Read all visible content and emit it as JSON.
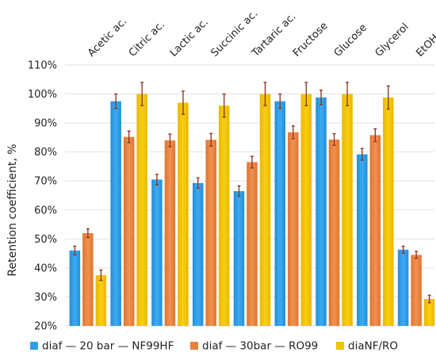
{
  "chart_data": {
    "type": "bar",
    "categories": [
      "Acetic ac.",
      "Citric ac.",
      "Lactic ac.",
      "Succinic ac.",
      "Tartaric ac.",
      "Fructose",
      "Glucose",
      "Glycerol",
      "EtOH"
    ],
    "series": [
      {
        "name": "diaf — 20 bar — NF99HF",
        "color": "#2e9fe6",
        "values": [
          46,
          97.5,
          70.5,
          69.3,
          66.5,
          97.5,
          98.8,
          79.2,
          46.3
        ],
        "errors": [
          1.5,
          2.5,
          1.8,
          1.8,
          1.8,
          2.5,
          2.5,
          2.0,
          1.2
        ]
      },
      {
        "name": "diaf — 30bar — RO99",
        "color": "#e8823a",
        "values": [
          52,
          85.2,
          84,
          84.2,
          76.5,
          86.8,
          84.3,
          85.8,
          44.5
        ],
        "errors": [
          1.5,
          2.0,
          2.2,
          2.2,
          2.0,
          2.2,
          2.0,
          2.2,
          1.2
        ]
      },
      {
        "name": "diaNF/RO",
        "color": "#f2c200",
        "values": [
          37.5,
          100,
          97,
          96,
          100,
          100,
          100,
          98.8,
          29.3
        ],
        "errors": [
          1.8,
          4.0,
          4.0,
          4.0,
          4.0,
          4.0,
          4.0,
          4.0,
          1.3
        ]
      }
    ],
    "ylabel": "Retention coefficient, %",
    "xlabel": "",
    "ylim": [
      20,
      110
    ],
    "yticks": [
      20,
      30,
      40,
      50,
      60,
      70,
      80,
      90,
      100,
      110
    ],
    "ytick_labels": [
      "20%",
      "30%",
      "40%",
      "50%",
      "60%",
      "70%",
      "80%",
      "90%",
      "100%",
      "110%"
    ],
    "error_bar_color": "#8b2e1e",
    "grid": true,
    "legend_position": "bottom"
  }
}
